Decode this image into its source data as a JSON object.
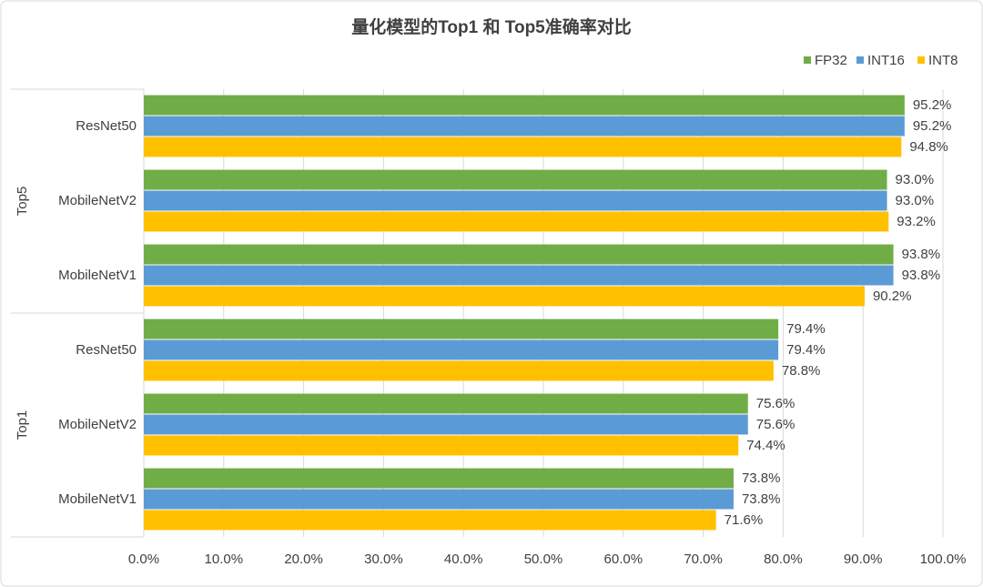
{
  "chart_data": {
    "type": "bar",
    "orientation": "horizontal",
    "title": "量化模型的Top1 和 Top5准确率对比",
    "groups": [
      {
        "name": "Top5",
        "categories": [
          "ResNet50",
          "MobileNetV2",
          "MobileNetV1"
        ]
      },
      {
        "name": "Top1",
        "categories": [
          "ResNet50",
          "MobileNetV2",
          "MobileNetV1"
        ]
      }
    ],
    "series": [
      {
        "name": "FP32",
        "color": "#70ad47",
        "values": [
          95.2,
          93.0,
          93.8,
          79.4,
          75.6,
          73.8
        ],
        "value_labels": [
          "95.2%",
          "93.0%",
          "93.8%",
          "79.4%",
          "75.6%",
          "73.8%"
        ]
      },
      {
        "name": "INT16",
        "color": "#5b9bd5",
        "values": [
          95.2,
          93.0,
          93.8,
          79.4,
          75.6,
          73.8
        ],
        "value_labels": [
          "95.2%",
          "93.0%",
          "93.8%",
          "79.4%",
          "75.6%",
          "73.8%"
        ]
      },
      {
        "name": "INT8",
        "color": "#ffc000",
        "values": [
          94.8,
          93.2,
          90.2,
          78.8,
          74.4,
          71.6
        ],
        "value_labels": [
          "94.8%",
          "93.2%",
          "90.2%",
          "78.8%",
          "74.4%",
          "71.6%"
        ]
      }
    ],
    "xlim": [
      0,
      100
    ],
    "xticks": [
      {
        "value": 0,
        "label": "0.0%"
      },
      {
        "value": 10,
        "label": "10.0%"
      },
      {
        "value": 20,
        "label": "20.0%"
      },
      {
        "value": 30,
        "label": "30.0%"
      },
      {
        "value": 40,
        "label": "40.0%"
      },
      {
        "value": 50,
        "label": "50.0%"
      },
      {
        "value": 60,
        "label": "60.0%"
      },
      {
        "value": 70,
        "label": "70.0%"
      },
      {
        "value": 80,
        "label": "80.0%"
      },
      {
        "value": 90,
        "label": "90.0%"
      },
      {
        "value": 100,
        "label": "100.0%"
      }
    ],
    "grid": true,
    "legend": "top-right"
  }
}
